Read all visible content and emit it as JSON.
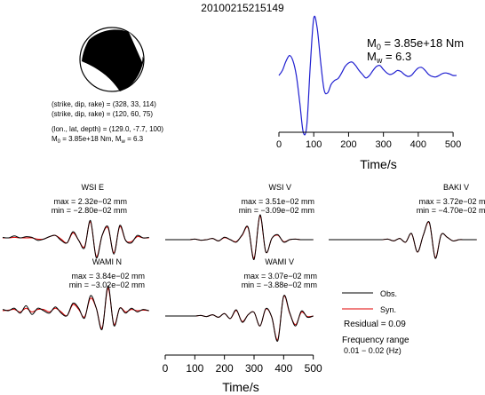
{
  "title": "20100215215149",
  "moment_tensor": {
    "line1": "(strike, dip, rake) = (328, 33, 114)",
    "line2": "(strike, dip, rake) = (120, 60, 75)",
    "line3": "(lon., lat, depth) = (129.0, -7.7, 100)",
    "line4_pre": "M",
    "line4_sub": "0",
    "line4_post": " = 3.85e+18 Nm, M",
    "line4_sub2": "w",
    "line4_end": " = 6.3"
  },
  "source_annot": {
    "m0_label": "M",
    "m0_sub": "0",
    "m0_value": " = 3.85e+18 Nm",
    "mw_label": "M",
    "mw_sub": "w",
    "mw_value": " = 6.3"
  },
  "xlabel": "Time/s",
  "colors": {
    "observed": "#000000",
    "synthetic": "#e00000",
    "stf": "#1f1fd0",
    "beachball_fill": "#000000"
  },
  "legend": {
    "obs": "Obs.",
    "syn": "Syn.",
    "residual": "Residual = 0.09",
    "freq1": "Frequency range",
    "freq2": "0.01 − 0.02 (Hz)"
  },
  "chart_data": [
    {
      "type": "line",
      "name": "source-time-function",
      "x": [
        0,
        10,
        20,
        30,
        40,
        50,
        60,
        70,
        80,
        90,
        100,
        110,
        120,
        130,
        140,
        150,
        160,
        170,
        180,
        190,
        200,
        210,
        220,
        230,
        240,
        250,
        260,
        270,
        280,
        290,
        300,
        310,
        320,
        330,
        340,
        350,
        360,
        370,
        380,
        390,
        400,
        410,
        420,
        430,
        440,
        450,
        460,
        470,
        480,
        490,
        500,
        510
      ],
      "y": [
        0.0,
        0.1,
        0.28,
        0.4,
        0.3,
        0.0,
        -0.55,
        -1.15,
        -1.0,
        0.2,
        1.15,
        0.95,
        0.25,
        -0.3,
        -0.35,
        -0.18,
        -0.1,
        -0.06,
        0.05,
        0.18,
        0.25,
        0.27,
        0.2,
        0.1,
        0.02,
        -0.05,
        0.0,
        0.1,
        0.18,
        0.2,
        0.12,
        0.05,
        0.02,
        0.05,
        0.1,
        0.08,
        0.02,
        -0.02,
        0.0,
        0.08,
        0.15,
        0.16,
        0.1,
        0.02,
        -0.02,
        -0.03,
        0.0,
        0.04,
        0.05,
        0.03,
        0.0,
        0.0
      ],
      "xticks": [
        0,
        100,
        200,
        300,
        400,
        500
      ],
      "xlim": [
        0,
        510
      ],
      "xlabel": "Time/s"
    },
    {
      "type": "line",
      "station": "WSI E",
      "max_text": "max = 2.32e−02 mm",
      "min_text": "min = −2.80e−02 mm",
      "x": [
        0,
        20,
        40,
        60,
        80,
        100,
        120,
        140,
        160,
        180,
        200,
        220,
        240,
        260,
        280,
        300,
        320,
        340,
        360,
        380,
        400,
        420,
        440,
        460,
        480,
        500
      ],
      "series": [
        {
          "name": "Obs.",
          "values": [
            0.02,
            0.0,
            0.08,
            0.0,
            0.05,
            0.02,
            -0.1,
            -0.05,
            0.05,
            0.1,
            -0.1,
            -0.2,
            0.25,
            -0.1,
            -0.4,
            0.7,
            -0.8,
            0.1,
            0.45,
            -0.65,
            0.5,
            -0.1,
            -0.2,
            0.1,
            0.0,
            0.02
          ]
        },
        {
          "name": "Syn.",
          "values": [
            0.0,
            0.0,
            0.02,
            0.0,
            0.0,
            0.0,
            -0.05,
            -0.05,
            0.05,
            0.1,
            -0.05,
            -0.2,
            0.2,
            -0.1,
            -0.35,
            0.65,
            -0.75,
            0.1,
            0.4,
            -0.6,
            0.45,
            -0.1,
            -0.15,
            0.05,
            0.0,
            0.0
          ]
        }
      ]
    },
    {
      "type": "line",
      "station": "WSI V",
      "max_text": "max = 3.51e−02 mm",
      "min_text": "min = −3.09e−02 mm",
      "x": [
        0,
        20,
        40,
        60,
        80,
        100,
        120,
        140,
        160,
        180,
        200,
        220,
        240,
        260,
        280,
        300,
        320,
        340,
        360,
        380,
        400,
        420,
        440,
        460,
        480,
        500
      ],
      "series": [
        {
          "name": "Obs.",
          "values": [
            0.0,
            0.0,
            0.0,
            0.0,
            0.0,
            0.02,
            -0.02,
            0.0,
            0.05,
            -0.05,
            0.1,
            0.0,
            -0.1,
            0.2,
            0.5,
            -0.8,
            1.0,
            -0.5,
            0.05,
            0.2,
            -0.1,
            0.0,
            0.02,
            0.0,
            0.0,
            0.0
          ]
        },
        {
          "name": "Syn.",
          "values": [
            0.0,
            0.0,
            0.0,
            0.0,
            0.0,
            0.02,
            -0.02,
            0.0,
            0.05,
            -0.05,
            0.08,
            0.0,
            -0.08,
            0.18,
            0.48,
            -0.75,
            0.95,
            -0.5,
            0.05,
            0.18,
            -0.08,
            0.0,
            0.02,
            0.0,
            0.0,
            0.0
          ]
        }
      ]
    },
    {
      "type": "line",
      "station": "BAKI V",
      "max_text": "max = 3.72e−02 mm",
      "min_text": "min = −4.70e−02 mm",
      "x": [
        0,
        20,
        40,
        60,
        80,
        100,
        120,
        140,
        160,
        180,
        200,
        220,
        240,
        260,
        280,
        300,
        320,
        340,
        360,
        380,
        400,
        420,
        440,
        460,
        480,
        500
      ],
      "series": [
        {
          "name": "Obs.",
          "values": [
            0.0,
            0.0,
            0.0,
            0.0,
            0.0,
            0.0,
            0.0,
            0.0,
            0.0,
            0.0,
            0.02,
            -0.05,
            0.05,
            -0.1,
            0.25,
            -0.5,
            0.2,
            0.7,
            -0.75,
            0.2,
            0.1,
            -0.05,
            0.0,
            0.0,
            0.0,
            0.0
          ]
        },
        {
          "name": "Syn.",
          "values": [
            0.0,
            0.0,
            0.0,
            0.0,
            0.0,
            0.0,
            0.0,
            0.0,
            0.0,
            0.0,
            0.02,
            -0.05,
            0.05,
            -0.1,
            0.24,
            -0.5,
            0.2,
            0.68,
            -0.72,
            0.2,
            0.1,
            -0.05,
            0.0,
            0.0,
            0.0,
            0.0
          ]
        }
      ]
    },
    {
      "type": "line",
      "station": "WAMI N",
      "max_text": "max = 3.84e−02 mm",
      "min_text": "min = −3.02e−02 mm",
      "x": [
        0,
        20,
        40,
        60,
        80,
        100,
        120,
        140,
        160,
        180,
        200,
        220,
        240,
        260,
        280,
        300,
        320,
        340,
        360,
        380,
        400,
        420,
        440,
        460,
        480,
        500
      ],
      "series": [
        {
          "name": "Obs.",
          "values": [
            0.05,
            0.0,
            0.1,
            -0.1,
            0.2,
            -0.15,
            0.1,
            0.0,
            -0.1,
            0.15,
            -0.1,
            -0.2,
            0.3,
            0.1,
            -0.3,
            0.6,
            0.1,
            -0.75,
            1.0,
            -0.6,
            0.1,
            -0.1,
            0.1,
            -0.05,
            0.05,
            0.0
          ]
        },
        {
          "name": "Syn.",
          "values": [
            0.0,
            0.02,
            0.05,
            -0.05,
            0.1,
            -0.05,
            0.05,
            0.05,
            -0.05,
            0.1,
            -0.05,
            -0.2,
            0.25,
            0.05,
            -0.25,
            0.5,
            0.1,
            -0.7,
            0.9,
            -0.55,
            0.1,
            -0.05,
            0.05,
            0.0,
            0.02,
            0.0
          ]
        }
      ]
    },
    {
      "type": "line",
      "station": "WAMI V",
      "max_text": "max = 3.07e−02 mm",
      "min_text": "min = −3.88e−02 mm",
      "x": [
        0,
        20,
        40,
        60,
        80,
        100,
        120,
        140,
        160,
        180,
        200,
        220,
        240,
        260,
        280,
        300,
        320,
        340,
        360,
        380,
        400,
        420,
        440,
        460,
        480,
        500
      ],
      "xticks": [
        0,
        100,
        200,
        300,
        400,
        500
      ],
      "series": [
        {
          "name": "Obs.",
          "values": [
            0.0,
            0.0,
            0.0,
            0.0,
            0.0,
            0.0,
            0.02,
            -0.02,
            0.05,
            -0.05,
            0.1,
            -0.1,
            0.25,
            -0.25,
            0.05,
            0.15,
            -0.4,
            0.3,
            -0.05,
            -1.0,
            0.8,
            0.15,
            -0.4,
            0.2,
            -0.05,
            0.0
          ]
        },
        {
          "name": "Syn.",
          "values": [
            0.0,
            0.0,
            0.0,
            0.0,
            0.0,
            0.0,
            0.02,
            -0.02,
            0.05,
            -0.05,
            0.1,
            -0.1,
            0.22,
            -0.22,
            0.05,
            0.15,
            -0.4,
            0.28,
            -0.05,
            -0.95,
            0.78,
            0.12,
            -0.35,
            0.15,
            -0.02,
            0.0
          ]
        }
      ]
    }
  ]
}
